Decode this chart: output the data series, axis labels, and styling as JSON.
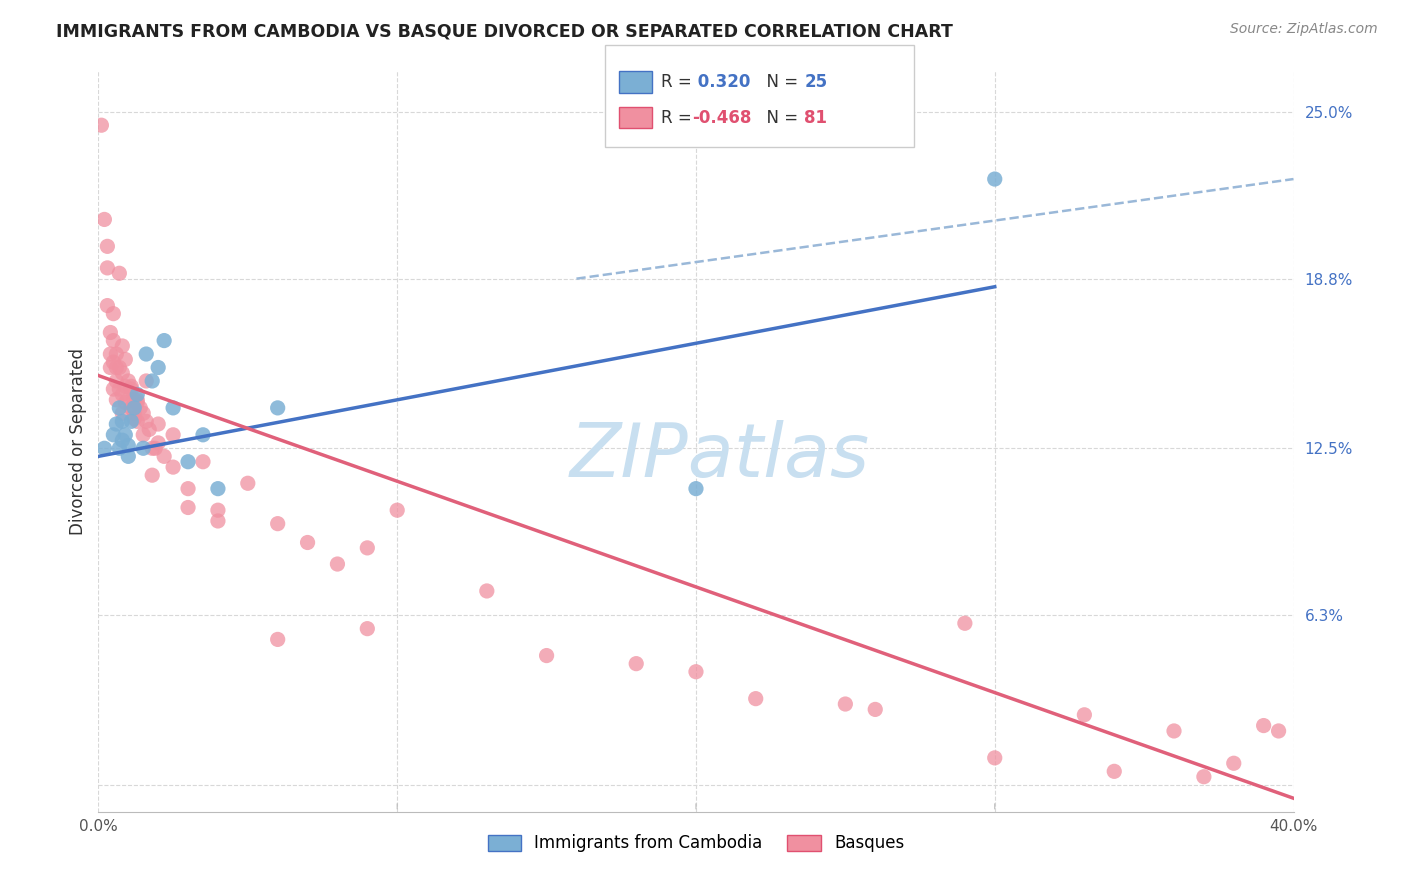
{
  "title": "IMMIGRANTS FROM CAMBODIA VS BASQUE DIVORCED OR SEPARATED CORRELATION CHART",
  "source": "Source: ZipAtlas.com",
  "ylabel": "Divorced or Separated",
  "xlim": [
    -0.005,
    0.41
  ],
  "ylim": [
    -0.01,
    0.28
  ],
  "plot_xlim": [
    0.0,
    0.4
  ],
  "plot_ylim": [
    0.0,
    0.25
  ],
  "xtick_positions": [
    0.0,
    0.1,
    0.2,
    0.3,
    0.4
  ],
  "xticklabels": [
    "0.0%",
    "",
    "",
    "",
    "40.0%"
  ],
  "ytick_positions": [
    0.0,
    0.063,
    0.125,
    0.188,
    0.25
  ],
  "ytick_labels": [
    "",
    "6.3%",
    "12.5%",
    "18.8%",
    "25.0%"
  ],
  "watermark": "ZIPatlas",
  "watermark_color": "#c8dff0",
  "blue_color": "#7bafd4",
  "pink_color": "#f090a0",
  "blue_line_color": "#4472c4",
  "pink_line_color": "#e0607a",
  "dashed_line_color": "#9ab8d8",
  "grid_color": "#d8d8d8",
  "grid_style": "--",
  "blue_points_x": [
    0.002,
    0.005,
    0.006,
    0.007,
    0.007,
    0.008,
    0.008,
    0.009,
    0.01,
    0.01,
    0.011,
    0.012,
    0.013,
    0.015,
    0.016,
    0.018,
    0.02,
    0.022,
    0.025,
    0.03,
    0.035,
    0.04,
    0.06,
    0.2,
    0.3
  ],
  "blue_points_y": [
    0.125,
    0.13,
    0.134,
    0.125,
    0.14,
    0.128,
    0.135,
    0.13,
    0.126,
    0.122,
    0.135,
    0.14,
    0.145,
    0.125,
    0.16,
    0.15,
    0.155,
    0.165,
    0.14,
    0.12,
    0.13,
    0.11,
    0.14,
    0.11,
    0.225
  ],
  "pink_points_x": [
    0.001,
    0.002,
    0.003,
    0.003,
    0.004,
    0.004,
    0.005,
    0.005,
    0.005,
    0.006,
    0.006,
    0.006,
    0.007,
    0.007,
    0.008,
    0.008,
    0.008,
    0.009,
    0.009,
    0.01,
    0.01,
    0.011,
    0.011,
    0.012,
    0.012,
    0.013,
    0.013,
    0.014,
    0.015,
    0.015,
    0.016,
    0.017,
    0.018,
    0.019,
    0.02,
    0.022,
    0.025,
    0.03,
    0.035,
    0.04,
    0.05,
    0.06,
    0.07,
    0.08,
    0.09,
    0.1,
    0.15,
    0.2,
    0.25,
    0.29,
    0.33,
    0.36,
    0.38,
    0.395,
    0.003,
    0.004,
    0.006,
    0.007,
    0.009,
    0.011,
    0.013,
    0.016,
    0.02,
    0.025,
    0.03,
    0.04,
    0.06,
    0.09,
    0.13,
    0.18,
    0.22,
    0.26,
    0.3,
    0.34,
    0.37,
    0.39,
    0.005,
    0.008,
    0.012,
    0.018
  ],
  "pink_points_y": [
    0.245,
    0.21,
    0.2,
    0.178,
    0.168,
    0.155,
    0.165,
    0.157,
    0.147,
    0.16,
    0.15,
    0.143,
    0.155,
    0.147,
    0.153,
    0.145,
    0.138,
    0.148,
    0.142,
    0.15,
    0.143,
    0.147,
    0.14,
    0.143,
    0.136,
    0.143,
    0.135,
    0.14,
    0.138,
    0.13,
    0.135,
    0.132,
    0.125,
    0.125,
    0.127,
    0.122,
    0.118,
    0.11,
    0.12,
    0.102,
    0.112,
    0.097,
    0.09,
    0.082,
    0.088,
    0.102,
    0.048,
    0.042,
    0.03,
    0.06,
    0.026,
    0.02,
    0.008,
    0.02,
    0.192,
    0.16,
    0.155,
    0.19,
    0.158,
    0.148,
    0.142,
    0.15,
    0.134,
    0.13,
    0.103,
    0.098,
    0.054,
    0.058,
    0.072,
    0.045,
    0.032,
    0.028,
    0.01,
    0.005,
    0.003,
    0.022,
    0.175,
    0.163,
    0.138,
    0.115
  ],
  "blue_line_x": [
    0.0,
    0.3
  ],
  "blue_line_y": [
    0.122,
    0.185
  ],
  "pink_line_x": [
    0.0,
    0.4
  ],
  "pink_line_y": [
    0.152,
    -0.005
  ],
  "dashed_line_x": [
    0.16,
    0.4
  ],
  "dashed_line_y": [
    0.188,
    0.225
  ]
}
